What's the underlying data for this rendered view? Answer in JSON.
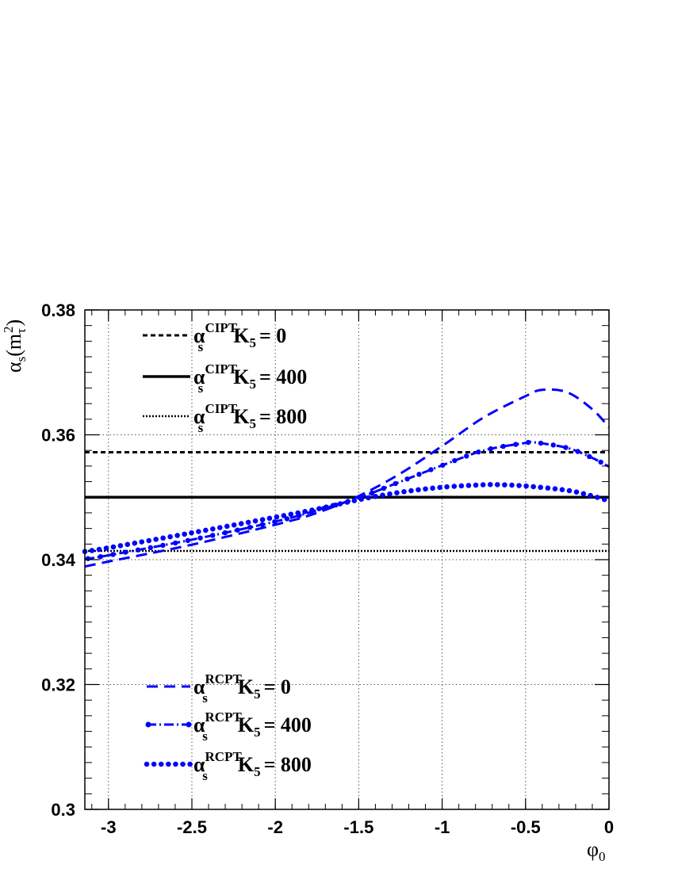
{
  "chart_data": {
    "type": "line",
    "xlabel": {
      "main": "φ",
      "sub": "0"
    },
    "ylabel": {
      "main": "α",
      "sub": "s",
      "arg_open": "(m",
      "arg_sub": "τ",
      "arg_sup": "2",
      "arg_close": ")"
    },
    "xlim": [
      -3.1416,
      0
    ],
    "ylim": [
      0.3,
      0.38
    ],
    "x_ticks": [
      -3,
      -2.5,
      -2,
      -1.5,
      -1,
      -0.5,
      0
    ],
    "x_tick_labels": [
      "-3",
      "-2.5",
      "-2",
      "-1.5",
      "-1",
      "-0.5",
      "0"
    ],
    "y_ticks": [
      0.3,
      0.32,
      0.34,
      0.36,
      0.38
    ],
    "y_tick_labels": [
      "0.3",
      "0.32",
      "0.34",
      "0.36",
      "0.38"
    ],
    "grid": true,
    "series": [
      {
        "label_main": "α",
        "label_sub": "s",
        "label_sup": "CIPT",
        "label_k": "K",
        "label_k_sub": "5",
        "label_value": "=   0",
        "color": "#000000",
        "style": "dashed",
        "legend_group": "top",
        "x": [
          -3.1416,
          0
        ],
        "y": [
          0.3572,
          0.3572
        ]
      },
      {
        "label_main": "α",
        "label_sub": "s",
        "label_sup": "CIPT",
        "label_k": "K",
        "label_k_sub": "5",
        "label_value": "= 400",
        "color": "#000000",
        "style": "solid",
        "legend_group": "top",
        "x": [
          -3.1416,
          0
        ],
        "y": [
          0.35,
          0.35
        ]
      },
      {
        "label_main": "α",
        "label_sub": "s",
        "label_sup": "CIPT",
        "label_k": "K",
        "label_k_sub": "5",
        "label_value": "= 800",
        "color": "#000000",
        "style": "dotted",
        "legend_group": "top",
        "x": [
          -3.1416,
          0
        ],
        "y": [
          0.3414,
          0.3414
        ]
      },
      {
        "label_main": "α",
        "label_sub": "s",
        "label_sup": "RCPT",
        "label_k": "K",
        "label_k_sub": "5",
        "label_value": "=   0",
        "color": "#0000ff",
        "style": "dashed",
        "legend_group": "bottom",
        "x": [
          -3.1416,
          -3.0,
          -2.5,
          -2.0,
          -1.75,
          -1.5,
          -1.25,
          -1.0,
          -0.75,
          -0.5,
          -0.4,
          -0.25,
          -0.1,
          0
        ],
        "y": [
          0.3389,
          0.3397,
          0.3424,
          0.3456,
          0.3475,
          0.3502,
          0.3538,
          0.3582,
          0.3628,
          0.3662,
          0.3672,
          0.3668,
          0.3641,
          0.3612
        ]
      },
      {
        "label_main": "α",
        "label_sub": "s",
        "label_sup": "RCPT",
        "label_k": "K",
        "label_k_sub": "5",
        "label_value": "= 400",
        "color": "#0000ff",
        "style": "dash-dot",
        "legend_group": "bottom",
        "x": [
          -3.1416,
          -3.0,
          -2.5,
          -2.0,
          -1.75,
          -1.5,
          -1.25,
          -1.0,
          -0.75,
          -0.5,
          -0.45,
          -0.25,
          -0.1,
          0
        ],
        "y": [
          0.3401,
          0.3407,
          0.3432,
          0.3461,
          0.3479,
          0.3499,
          0.3525,
          0.3551,
          0.3575,
          0.3587,
          0.3588,
          0.3579,
          0.3563,
          0.3549
        ]
      },
      {
        "label_main": "α",
        "label_sub": "s",
        "label_sup": "RCPT",
        "label_k": "K",
        "label_k_sub": "5",
        "label_value": "= 800",
        "color": "#0000ff",
        "style": "dotted-heavy",
        "legend_group": "bottom",
        "x": [
          -3.1416,
          -3.0,
          -2.5,
          -2.0,
          -1.75,
          -1.5,
          -1.25,
          -1.0,
          -0.75,
          -0.65,
          -0.5,
          -0.25,
          -0.1,
          0
        ],
        "y": [
          0.3413,
          0.3419,
          0.3443,
          0.3468,
          0.3481,
          0.3496,
          0.3508,
          0.3516,
          0.352,
          0.352,
          0.3518,
          0.3511,
          0.3502,
          0.3494
        ]
      }
    ]
  }
}
